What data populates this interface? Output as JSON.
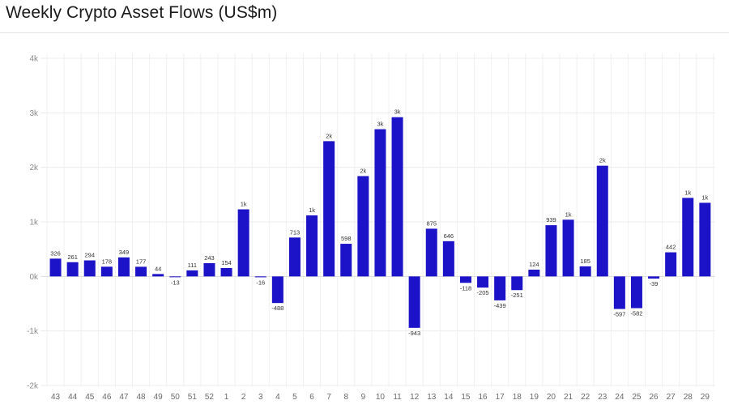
{
  "chart_data": {
    "type": "bar",
    "title": "Weekly Crypto Asset Flows (US$m)",
    "xlabel": "",
    "ylabel": "",
    "ylim": [
      -2000,
      4000
    ],
    "yticks": [
      4000,
      3000,
      2000,
      1000,
      0,
      -1000,
      -2000
    ],
    "ytick_labels": [
      "4k",
      "3k",
      "2k",
      "1k",
      "0k",
      "-1k",
      "-2k"
    ],
    "grid": true,
    "bar_color": "#1c12c8",
    "categories": [
      "43",
      "44",
      "45",
      "46",
      "47",
      "48",
      "49",
      "50",
      "51",
      "52",
      "1",
      "2",
      "3",
      "4",
      "5",
      "6",
      "7",
      "8",
      "9",
      "10",
      "11",
      "12",
      "13",
      "14",
      "15",
      "16",
      "17",
      "18",
      "19",
      "20",
      "21",
      "22",
      "23",
      "24",
      "25",
      "26",
      "27",
      "28",
      "29"
    ],
    "values": [
      326,
      261,
      294,
      178,
      349,
      177,
      44,
      -13,
      111,
      243,
      154,
      1230,
      -16,
      -488,
      713,
      1120,
      2480,
      598,
      1840,
      2700,
      2920,
      -943,
      875,
      646,
      -118,
      -205,
      -439,
      -251,
      124,
      939,
      1040,
      185,
      2030,
      -597,
      -582,
      -39,
      442,
      1440,
      1350
    ],
    "data_labels": [
      "326",
      "261",
      "294",
      "178",
      "349",
      "177",
      "44",
      "-13",
      "111",
      "243",
      "154",
      "1k",
      "-16",
      "-488",
      "713",
      "1k",
      "2k",
      "598",
      "2k",
      "3k",
      "3k",
      "-943",
      "875",
      "646",
      "-118",
      "-205",
      "-439",
      "-251",
      "124",
      "939",
      "1k",
      "185",
      "2k",
      "-597",
      "-582",
      "-39",
      "442",
      "1k",
      "1k"
    ]
  }
}
